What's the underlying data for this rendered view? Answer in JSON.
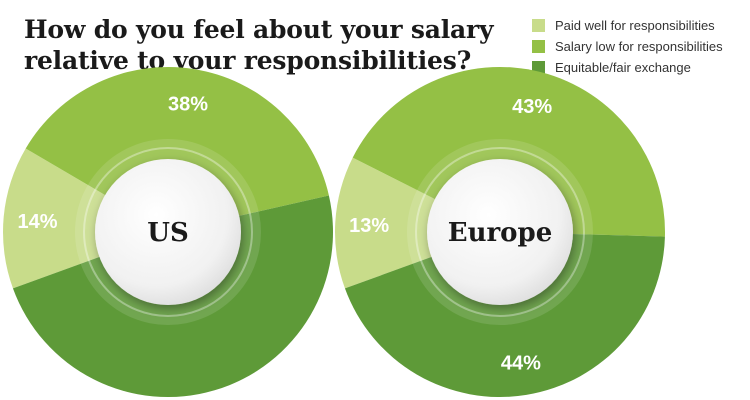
{
  "title_lines": [
    "How do you feel about your salary",
    "relative to your responsibilities?"
  ],
  "colors": {
    "paid_well": "#c8dc8a",
    "salary_low": "#94c045",
    "equitable": "#5e9a38"
  },
  "chart_data": [
    {
      "type": "pie",
      "title": "US",
      "categories": [
        "Paid well for responsibilities",
        "Salary low for responsibilities",
        "Equitable/fair exchange"
      ],
      "values": [
        14,
        38,
        48
      ],
      "labels": [
        "14%",
        "38%",
        ""
      ]
    },
    {
      "type": "pie",
      "title": "Europe",
      "categories": [
        "Paid well for responsibilities",
        "Salary low for responsibilities",
        "Equitable/fair exchange"
      ],
      "values": [
        13,
        43,
        44
      ],
      "labels": [
        "13%",
        "43%",
        "44%"
      ]
    }
  ],
  "legend": [
    {
      "label": "Paid well for responsibilities",
      "color_key": "paid_well"
    },
    {
      "label": "Salary low for responsibilities",
      "color_key": "salary_low"
    },
    {
      "label": "Equitable/fair exchange",
      "color_key": "equitable"
    }
  ]
}
